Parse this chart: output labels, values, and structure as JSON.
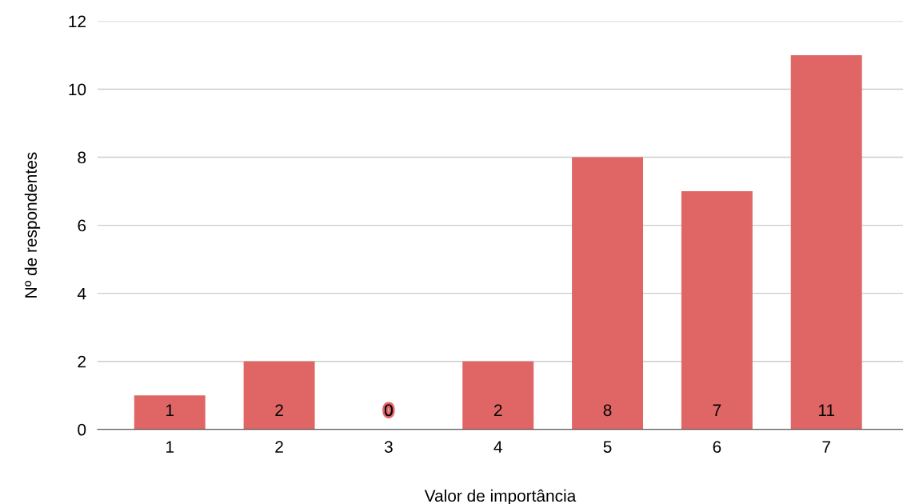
{
  "chart_data": {
    "type": "bar",
    "xlabel": "Valor de importância",
    "ylabel": "Nº de respondentes",
    "categories": [
      "1",
      "2",
      "3",
      "4",
      "5",
      "6",
      "7"
    ],
    "values": [
      1,
      2,
      0,
      2,
      8,
      7,
      11
    ],
    "color": "#e06666",
    "ylim": [
      0,
      12
    ],
    "yticks": [
      0,
      2,
      4,
      6,
      8,
      10,
      12
    ],
    "grid": "y",
    "data_labels": true
  }
}
